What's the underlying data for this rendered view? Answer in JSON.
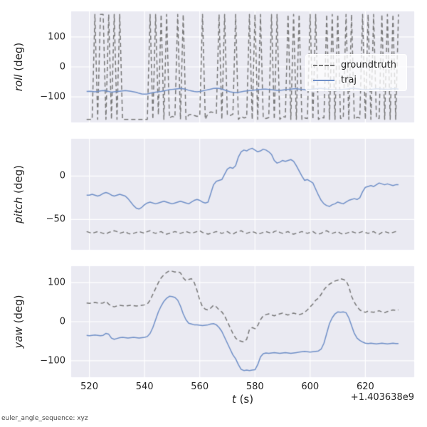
{
  "figure": {
    "background": "#ffffff",
    "axes_background": "#eaeaf2",
    "grid_color": "#ffffff",
    "tick_color": "#262626",
    "footer": "euler_angle_sequence: xyz",
    "xlabel": {
      "var": "t",
      "unit": " (s)"
    },
    "x_offset_text": "+1.403638e9",
    "legend": {
      "entries": [
        {
          "label": "groundtruth",
          "style": "dashed",
          "color": "#777777"
        },
        {
          "label": "traj",
          "style": "solid",
          "color": "#7090c8"
        }
      ]
    }
  },
  "x": [
    519,
    520,
    521,
    522,
    523,
    524,
    525,
    526,
    527,
    528,
    529,
    530,
    531,
    532,
    533,
    534,
    535,
    536,
    537,
    538,
    539,
    540,
    541,
    542,
    543,
    544,
    545,
    546,
    547,
    548,
    549,
    550,
    551,
    552,
    553,
    554,
    555,
    556,
    557,
    558,
    559,
    560,
    561,
    562,
    563,
    564,
    565,
    566,
    567,
    568,
    569,
    570,
    571,
    572,
    573,
    574,
    575,
    576,
    577,
    578,
    579,
    580,
    581,
    582,
    583,
    584,
    585,
    586,
    587,
    588,
    589,
    590,
    591,
    592,
    593,
    594,
    595,
    596,
    597,
    598,
    599,
    600,
    601,
    602,
    603,
    604,
    605,
    606,
    607,
    608,
    609,
    610,
    611,
    612,
    613,
    614,
    615,
    616,
    617,
    618,
    619,
    620,
    621,
    622,
    623,
    624,
    625,
    626,
    627,
    628,
    629,
    630,
    631,
    632
  ],
  "chart_data": [
    {
      "type": "line",
      "ylabel_var": "roll",
      "ylabel_unit": " (deg)",
      "ylim": [
        -185,
        185
      ],
      "yticks": [
        -100,
        0,
        100
      ],
      "xlim": [
        513.4,
        637.7
      ],
      "xticks": [
        520,
        540,
        560,
        580,
        600,
        620
      ],
      "series": [
        {
          "name": "groundtruth",
          "color": "#777777",
          "dash": [
            6,
            4
          ],
          "y": [
            -175,
            -175,
            -175,
            175,
            -175,
            175,
            175,
            -175,
            175,
            -175,
            175,
            -175,
            175,
            -175,
            -175,
            -175,
            -175,
            -175,
            -175,
            -175,
            -175,
            -175,
            -175,
            175,
            -175,
            175,
            -160,
            175,
            -175,
            175,
            -170,
            -165,
            -168,
            175,
            -175,
            175,
            -175,
            -160,
            -158,
            -162,
            -165,
            -163,
            175,
            -175,
            -155,
            -150,
            -152,
            -155,
            175,
            -175,
            175,
            -160,
            -162,
            -158,
            175,
            -175,
            -165,
            -170,
            -168,
            175,
            -175,
            175,
            -175,
            175,
            -170,
            -172,
            -169,
            175,
            -175,
            175,
            -175,
            -165,
            -168,
            175,
            -175,
            175,
            -175,
            175,
            -175,
            -170,
            -172,
            175,
            -175,
            175,
            -175,
            -168,
            -170,
            175,
            -175,
            175,
            -175,
            175,
            -172,
            -170,
            175,
            -175,
            175,
            -175,
            -168,
            -170,
            175,
            -175,
            175,
            -175,
            175,
            -170,
            -172,
            175,
            -175,
            175,
            -175,
            175,
            -175,
            175
          ]
        },
        {
          "name": "traj",
          "color": "#7090c8",
          "dash": null,
          "y": [
            -82,
            -81,
            -82,
            -83,
            -82,
            -80,
            -79,
            -80,
            -82,
            -84,
            -83,
            -82,
            -81,
            -80,
            -79,
            -80,
            -81,
            -83,
            -85,
            -88,
            -90,
            -91,
            -90,
            -88,
            -86,
            -84,
            -83,
            -82,
            -80,
            -78,
            -76,
            -75,
            -74,
            -73,
            -72,
            -73,
            -75,
            -78,
            -80,
            -82,
            -83,
            -82,
            -80,
            -78,
            -76,
            -74,
            -72,
            -71,
            -72,
            -74,
            -77,
            -80,
            -83,
            -85,
            -86,
            -85,
            -83,
            -81,
            -80,
            -79,
            -78,
            -77,
            -76,
            -75,
            -74,
            -74,
            -75,
            -76,
            -77,
            -78,
            -78,
            -77,
            -76,
            -75,
            -74,
            -73,
            -73,
            -74,
            -75,
            -76,
            -76,
            -75,
            -74,
            -73,
            -72,
            -72,
            -73,
            -74,
            -75,
            -76,
            -77,
            -77,
            -76,
            -75,
            -74,
            -73,
            -72,
            -72,
            -73,
            -74,
            -75,
            -76,
            -76,
            -75,
            -74,
            -73,
            -73,
            -74,
            -75,
            -75,
            -74,
            -73,
            -73,
            -74
          ]
        }
      ]
    },
    {
      "type": "line",
      "ylabel_var": "pitch",
      "ylabel_unit": " (deg)",
      "ylim": [
        -85,
        43
      ],
      "yticks": [
        -50,
        0
      ],
      "xlim": [
        513.4,
        637.7
      ],
      "xticks": [
        520,
        540,
        560,
        580,
        600,
        620
      ],
      "series": [
        {
          "name": "groundtruth",
          "color": "#777777",
          "dash": [
            6,
            4
          ],
          "y": [
            -64,
            -65,
            -66,
            -65,
            -64,
            -65,
            -66,
            -67,
            -65,
            -64,
            -63,
            -64,
            -66,
            -65,
            -64,
            -66,
            -67,
            -66,
            -65,
            -64,
            -65,
            -66,
            -64,
            -63,
            -65,
            -66,
            -65,
            -64,
            -66,
            -67,
            -66,
            -65,
            -64,
            -65,
            -66,
            -65,
            -64,
            -65,
            -66,
            -65,
            -64,
            -63,
            -65,
            -66,
            -67,
            -66,
            -65,
            -64,
            -65,
            -66,
            -65,
            -64,
            -66,
            -67,
            -65,
            -64,
            -63,
            -65,
            -66,
            -65,
            -64,
            -65,
            -67,
            -66,
            -65,
            -64,
            -65,
            -66,
            -64,
            -63,
            -65,
            -66,
            -65,
            -64,
            -66,
            -67,
            -66,
            -65,
            -64,
            -65,
            -66,
            -65,
            -64,
            -66,
            -67,
            -66,
            -64,
            -63,
            -65,
            -66,
            -65,
            -64,
            -66,
            -67,
            -66,
            -65,
            -64,
            -65,
            -66,
            -65,
            -64,
            -65,
            -66,
            -65,
            -64,
            -66,
            -67,
            -65,
            -64,
            -65,
            -66,
            -65,
            -64,
            -65
          ]
        },
        {
          "name": "traj",
          "color": "#7090c8",
          "dash": null,
          "y": [
            -22,
            -22,
            -21,
            -22,
            -23,
            -22,
            -20,
            -19,
            -20,
            -22,
            -23,
            -22,
            -21,
            -22,
            -23,
            -26,
            -30,
            -34,
            -37,
            -38,
            -36,
            -33,
            -31,
            -30,
            -31,
            -32,
            -31,
            -30,
            -29,
            -30,
            -31,
            -32,
            -31,
            -30,
            -29,
            -30,
            -31,
            -32,
            -30,
            -28,
            -27,
            -28,
            -30,
            -31,
            -30,
            -20,
            -10,
            -6,
            -5,
            -4,
            2,
            8,
            10,
            9,
            12,
            22,
            28,
            30,
            29,
            31,
            32,
            30,
            28,
            29,
            31,
            30,
            28,
            25,
            18,
            15,
            16,
            18,
            17,
            18,
            19,
            17,
            12,
            6,
            0,
            -5,
            -4,
            -6,
            -8,
            -15,
            -22,
            -28,
            -32,
            -34,
            -35,
            -33,
            -32,
            -30,
            -31,
            -32,
            -30,
            -28,
            -27,
            -26,
            -27,
            -25,
            -18,
            -13,
            -12,
            -11,
            -12,
            -10,
            -8,
            -9,
            -10,
            -9,
            -10,
            -11,
            -10,
            -10
          ]
        }
      ]
    },
    {
      "type": "line",
      "ylabel_var": "yaw",
      "ylabel_unit": " (deg)",
      "ylim": [
        -142,
        142
      ],
      "yticks": [
        -100,
        0,
        100
      ],
      "xlim": [
        513.4,
        637.7
      ],
      "xticks": [
        520,
        540,
        560,
        580,
        600,
        620
      ],
      "series": [
        {
          "name": "groundtruth",
          "color": "#777777",
          "dash": [
            6,
            4
          ],
          "y": [
            48,
            47,
            48,
            49,
            48,
            47,
            48,
            52,
            45,
            40,
            38,
            40,
            42,
            41,
            40,
            41,
            42,
            41,
            40,
            41,
            42,
            43,
            45,
            55,
            70,
            85,
            100,
            112,
            120,
            126,
            130,
            129,
            127,
            128,
            125,
            112,
            105,
            108,
            110,
            100,
            80,
            55,
            38,
            32,
            30,
            35,
            42,
            38,
            30,
            25,
            15,
            0,
            -15,
            -30,
            -42,
            -48,
            -50,
            -52,
            -45,
            -20,
            -15,
            -18,
            -10,
            5,
            15,
            18,
            20,
            17,
            15,
            18,
            20,
            22,
            19,
            17,
            20,
            22,
            20,
            18,
            20,
            24,
            30,
            38,
            45,
            55,
            60,
            70,
            82,
            90,
            96,
            100,
            104,
            106,
            110,
            108,
            105,
            90,
            65,
            50,
            38,
            30,
            26,
            24,
            27,
            25,
            24,
            26,
            28,
            25,
            23,
            26,
            28,
            30,
            29,
            30
          ]
        },
        {
          "name": "traj",
          "color": "#7090c8",
          "dash": null,
          "y": [
            -35,
            -36,
            -35,
            -34,
            -35,
            -36,
            -35,
            -30,
            -32,
            -42,
            -45,
            -43,
            -41,
            -40,
            -41,
            -42,
            -41,
            -40,
            -41,
            -42,
            -41,
            -40,
            -38,
            -30,
            -15,
            5,
            25,
            40,
            52,
            60,
            65,
            64,
            62,
            55,
            40,
            20,
            5,
            -4,
            -6,
            -8,
            -8,
            -9,
            -10,
            -9,
            -8,
            -6,
            -5,
            -8,
            -15,
            -25,
            -40,
            -55,
            -70,
            -85,
            -95,
            -110,
            -122,
            -125,
            -124,
            -125,
            -124,
            -123,
            -110,
            -90,
            -82,
            -80,
            -81,
            -80,
            -79,
            -80,
            -81,
            -80,
            -79,
            -80,
            -81,
            -80,
            -79,
            -78,
            -77,
            -76,
            -77,
            -78,
            -77,
            -76,
            -75,
            -70,
            -55,
            -30,
            -5,
            10,
            20,
            25,
            24,
            25,
            23,
            10,
            -10,
            -30,
            -42,
            -48,
            -52,
            -55,
            -56,
            -55,
            -56,
            -57,
            -56,
            -55,
            -56,
            -57,
            -56,
            -55,
            -56,
            -56
          ]
        }
      ]
    }
  ]
}
